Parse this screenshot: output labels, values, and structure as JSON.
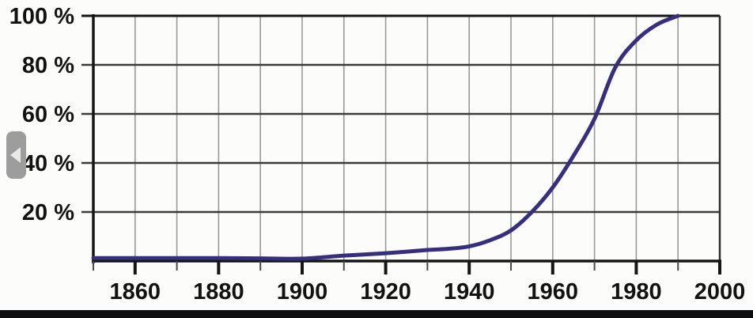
{
  "chart_data": {
    "type": "line",
    "title": "",
    "x": [
      1850,
      1860,
      1870,
      1880,
      1890,
      1900,
      1910,
      1920,
      1930,
      1935,
      1940,
      1945,
      1950,
      1955,
      1960,
      1965,
      1970,
      1975,
      1980,
      1985,
      1990
    ],
    "y": [
      1.2,
      1.2,
      1.2,
      1.2,
      1.1,
      1.0,
      2.2,
      3.2,
      4.5,
      5.0,
      6.0,
      8.5,
      12.5,
      20,
      30,
      43,
      58,
      79,
      90,
      96.5,
      100
    ],
    "xlim": [
      1850,
      2000
    ],
    "ylim": [
      0,
      100
    ],
    "xlabel": "",
    "ylabel": "",
    "grid": {
      "x_step_years": 10,
      "y_step_pct": 20,
      "vertical_line_color": "#9a9a9a",
      "horizontal_line_color": "#3b3b3b",
      "axis_color": "#151515",
      "right_border_color": "#2d2d2d"
    },
    "x_major_ticks": [
      {
        "value": 1860,
        "label": "1860"
      },
      {
        "value": 1880,
        "label": "1880"
      },
      {
        "value": 1900,
        "label": "1900"
      },
      {
        "value": 1920,
        "label": "1920"
      },
      {
        "value": 1940,
        "label": "1940"
      },
      {
        "value": 1960,
        "label": "1960"
      },
      {
        "value": 1980,
        "label": "1980"
      },
      {
        "value": 2000,
        "label": "2000"
      }
    ],
    "x_minor_ticks": [
      1850,
      1870,
      1890,
      1910,
      1930,
      1950,
      1970,
      1990
    ],
    "y_ticks": [
      {
        "value": 100,
        "label": "100 %"
      },
      {
        "value": 80,
        "label": "80 %"
      },
      {
        "value": 60,
        "label": "60 %"
      },
      {
        "value": 40,
        "label": "40 %"
      },
      {
        "value": 20,
        "label": "20 %"
      }
    ],
    "legend": "none",
    "line_color": "#362f7c",
    "line_width": 5,
    "plot_background": "#fcfcfb"
  },
  "overlay": {
    "prev_button": {
      "icon": "left-arrow",
      "button_color": "#9d9d9d",
      "arrow_color": "#e9e9e7"
    }
  },
  "bottom_bar": {
    "color": "#0d0e10"
  }
}
